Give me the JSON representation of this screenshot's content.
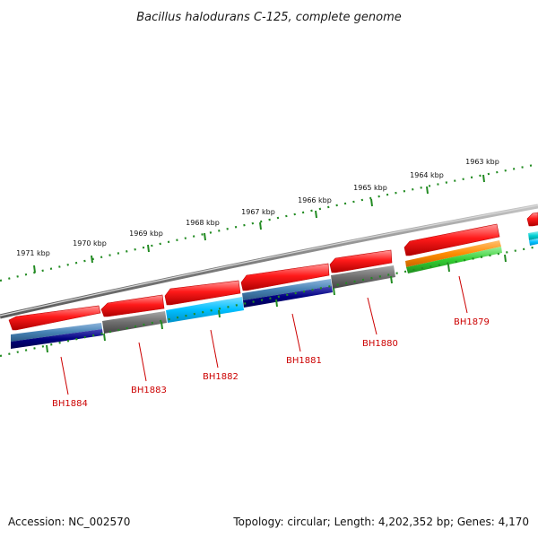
{
  "title": "Bacillus halodurans C-125, complete genome",
  "footer": {
    "accession": "Accession: NC_002570",
    "topology": "Topology: circular; Length: 4,202,352 bp; Genes: 4,170"
  },
  "scale_labels": [
    "1971 kbp",
    "1970 kbp",
    "1969 kbp",
    "1968 kbp",
    "1967 kbp",
    "1966 kbp",
    "1965 kbp",
    "1964 kbp",
    "1963 kbp"
  ],
  "gene_labels": [
    "BH1884",
    "BH1883",
    "BH1882",
    "BH1881",
    "BH1880",
    "BH1879"
  ],
  "colors": {
    "backbone": "#808080",
    "scale_ticks": "#228b22",
    "gene_arrow": "#ff0000",
    "label": "#cc0000",
    "cog_gray": "#6e6e6e",
    "cog_light_blue": "#00bfff",
    "cog_steel_blue": "#4682b4",
    "cog_navy": "#000080",
    "cog_orange": "#ff8c00",
    "cog_green": "#32cd32",
    "cog_teal": "#00ced1"
  }
}
